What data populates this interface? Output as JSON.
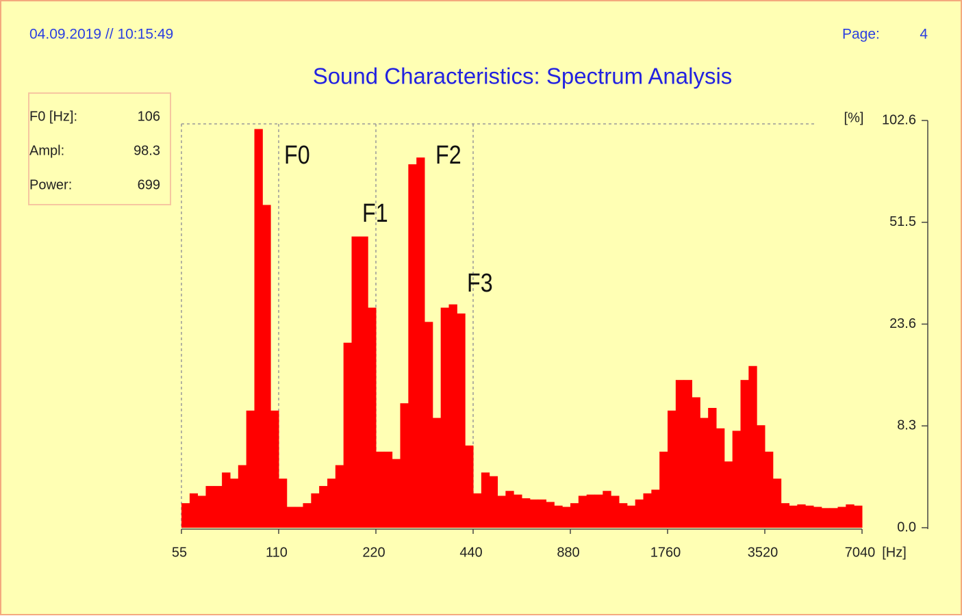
{
  "header": {
    "timestamp": "04.09.2019 // 10:15:49",
    "page_label": "Page:",
    "page": 4
  },
  "info": {
    "rows": [
      [
        "F0 [Hz]:",
        106
      ],
      [
        "Ampl:",
        98.3
      ],
      [
        "Power:",
        699
      ]
    ]
  },
  "chart_data": {
    "type": "histogram",
    "title": "Sound Characteristics: Spectrum Analysis",
    "y_unit": "[%]",
    "x_unit": "[Hz]",
    "color": "#ff0000",
    "log_x": true,
    "grid": true,
    "annotations": [
      "F0",
      "F1",
      "F2",
      "F3"
    ],
    "bins": [
      55,
      58.3,
      61.7,
      65.4,
      69.3,
      73.4,
      77.8,
      82.4,
      87.3,
      92.5,
      98,
      103.8,
      110,
      116.5,
      123.5,
      130.8,
      138.6,
      146.8,
      155.6,
      164.8,
      174.6,
      185,
      196,
      207.7,
      220,
      233.1,
      246.9,
      261.6,
      277.2,
      293.7,
      311.1,
      329.6,
      349.2,
      370,
      392,
      415.3,
      440,
      466.2,
      493.9,
      523.3,
      554.4,
      587.3,
      622.3,
      659.3,
      698.5,
      740,
      784,
      830.6,
      880,
      932.3,
      987.8,
      1046.5,
      1108.7,
      1174.7,
      1244.5,
      1318.5,
      1396.9,
      1480,
      1568,
      1661.2,
      1760,
      1864.7,
      1975.5,
      2093,
      2217.5,
      2349.3,
      2489,
      2637,
      2793.8,
      2960,
      3136,
      3322.4,
      3520,
      3729.3,
      3951.1,
      4186,
      4434.9,
      4698.6,
      4978,
      5274,
      5587.7,
      5919.9,
      6271.9,
      6644.9,
      7040
    ],
    "values": [
      2.0,
      2.8,
      2.6,
      3.4,
      3.4,
      4.5,
      4.0,
      5.1,
      10.6,
      98.3,
      60.2,
      10.6,
      4.0,
      1.7,
      1.7,
      2.0,
      2.8,
      3.4,
      4.0,
      5.1,
      20.8,
      47.6,
      47.6,
      28.1,
      6.2,
      6.2,
      5.6,
      11.7,
      80.6,
      84,
      24.2,
      9.5,
      28.1,
      29,
      26.5,
      6.7,
      2.8,
      4.5,
      4.2,
      2.6,
      3.0,
      2.7,
      2.4,
      2.3,
      2.3,
      2.1,
      1.8,
      1.7,
      2.0,
      2.6,
      2.7,
      2.7,
      3.0,
      2.6,
      2.0,
      1.8,
      2.3,
      2.8,
      3.1,
      6.2,
      10.6,
      15.2,
      15.2,
      12.6,
      9.5,
      11.0,
      8.1,
      5.4,
      7.9,
      15.2,
      17.3,
      8.4,
      6.2,
      4.0,
      2.0,
      1.8,
      1.9,
      1.8,
      1.7,
      1.6,
      1.6,
      1.7,
      1.9,
      1.8
    ],
    "xlim": [
      55,
      7040
    ],
    "xticks": [
      55,
      110,
      220,
      440,
      880,
      1760,
      3520,
      7040
    ],
    "ylim": [
      0,
      102.6
    ],
    "yticks": [
      {
        "value": 0,
        "label": "0.0"
      },
      8.3,
      23.6,
      51.5,
      102.6
    ]
  }
}
